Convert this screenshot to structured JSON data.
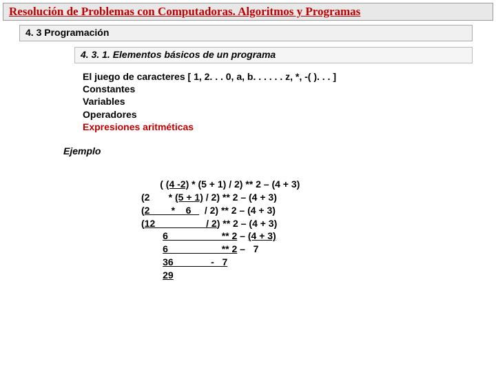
{
  "title": "Resolución de Problemas con Computadoras. Algoritmos y Programas",
  "section": "4. 3 Programación",
  "subsection": "4. 3. 1. Elementos básicos de un programa",
  "list": {
    "line1": "El juego de caracteres [ 1, 2. . . 0, a, b. . . . . . z, *, -( ). . . ]",
    "line2": "Constantes",
    "line3": "Variables",
    "line4": "Operadores",
    "line5": "Expresiones aritméticas"
  },
  "example_label": "Ejemplo",
  "calc": {
    "l1_a": "       ( ",
    "l1_u": "(4 -2)",
    "l1_b": " * (5 + 1) / 2) ** 2 – (4 + 3)",
    "l2_a": "(2       * ",
    "l2_u": "(5 + 1)",
    "l2_b": " / 2) ** 2 – (4 + 3)",
    "l3_a": "(",
    "l3_u1": "2        *    6   ",
    "l3_b": "  / 2) ** 2 – (4 + 3)",
    "l4_a": "(",
    "l4_u": "12                   / 2",
    "l4_b": ") ** 2 – (4 + 3)",
    "l5_a": "        ",
    "l5_u": "6                    ** 2",
    "l5_b": " – ",
    "l5_u2": "(4 + 3)",
    "l6_a": "        ",
    "l6_u": "6                    ** 2",
    "l6_b": " –   7",
    "l7_a": "        ",
    "l7_u": "36              -   7",
    "l8_a": "        ",
    "l8_u": "29"
  },
  "colors": {
    "title_red": "#c00000",
    "bg": "#ffffff"
  }
}
